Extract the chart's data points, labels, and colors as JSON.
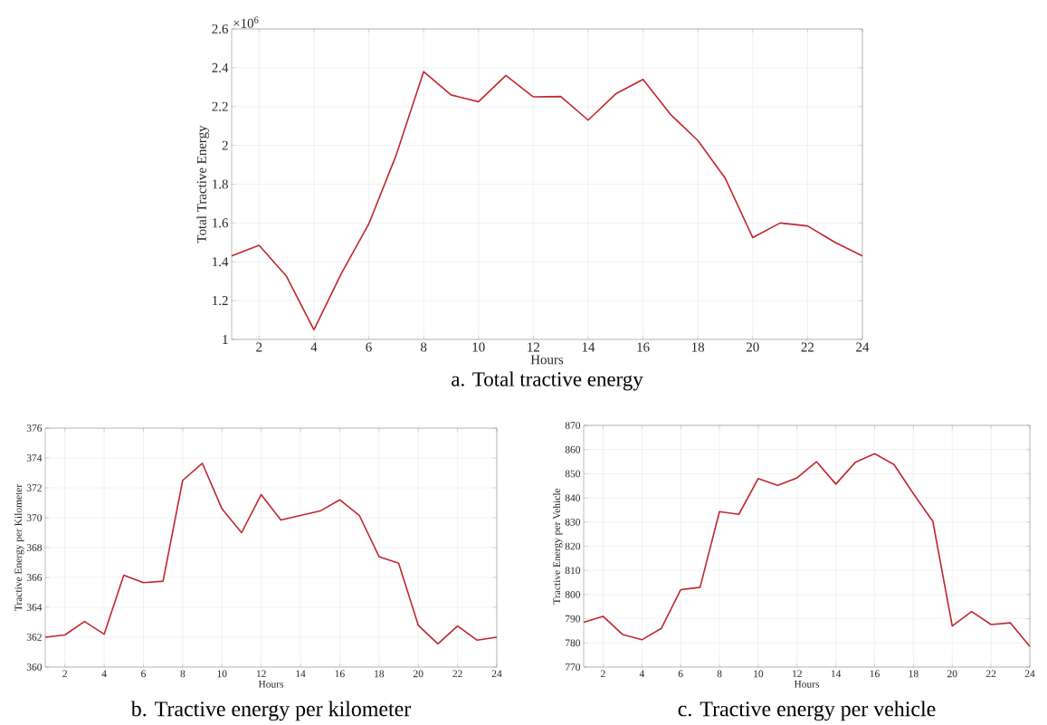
{
  "chart_data": [
    {
      "type": "line",
      "title": "a. Total tractive energy",
      "xlabel": "Hours",
      "ylabel": "Total Tractive Energy",
      "annotations": [
        "×10$^{6}$"
      ],
      "x": [
        1,
        2,
        3,
        4,
        5,
        6,
        7,
        8,
        9,
        10,
        11,
        12,
        13,
        14,
        15,
        16,
        17,
        18,
        19,
        20,
        21,
        22,
        23,
        24
      ],
      "series": [
        {
          "color": "#c0272d",
          "values": [
            1.43,
            1.485,
            1.325,
            1.05,
            1.34,
            1.595,
            1.95,
            2.38,
            2.26,
            2.225,
            2.36,
            2.25,
            2.252,
            2.13,
            2.265,
            2.34,
            2.16,
            2.025,
            1.83,
            1.525,
            1.6,
            1.585,
            1.5,
            1.43
          ]
        }
      ],
      "xlim": [
        1,
        24
      ],
      "xticks": [
        2,
        4,
        6,
        8,
        10,
        12,
        14,
        16,
        18,
        20,
        22,
        24
      ],
      "ylim": [
        1,
        2.6
      ],
      "yticks": [
        1,
        1.2,
        1.4,
        1.6,
        1.8,
        2,
        2.2,
        2.4,
        2.6
      ],
      "grid": true,
      "marker": "none",
      "line_style": "solid"
    },
    {
      "type": "line",
      "title": "b. Tractive energy per kilometer",
      "xlabel": "Hours",
      "ylabel": "Tractive Energy per Kilometer",
      "x": [
        1,
        2,
        3,
        4,
        5,
        6,
        7,
        8,
        9,
        10,
        11,
        12,
        13,
        14,
        15,
        16,
        17,
        18,
        19,
        20,
        21,
        22,
        23,
        24
      ],
      "series": [
        {
          "color": "#c0272d",
          "values": [
            362.0,
            362.15,
            363.05,
            362.2,
            366.15,
            365.65,
            365.75,
            372.5,
            373.65,
            370.6,
            369.0,
            371.55,
            369.85,
            370.15,
            370.45,
            371.2,
            370.15,
            367.4,
            366.95,
            362.8,
            361.55,
            362.75,
            361.8,
            362.0
          ]
        }
      ],
      "xlim": [
        1,
        24
      ],
      "xticks": [
        2,
        4,
        6,
        8,
        10,
        12,
        14,
        16,
        18,
        20,
        22,
        24
      ],
      "ylim": [
        360,
        376
      ],
      "yticks": [
        360,
        362,
        364,
        366,
        368,
        370,
        372,
        374,
        376
      ],
      "grid": true,
      "marker": "none",
      "line_style": "solid"
    },
    {
      "type": "line",
      "title": "c. Tractive energy per vehicle",
      "xlabel": "Hours",
      "ylabel": "Tractive Energy per Vehicle",
      "x": [
        1,
        2,
        3,
        4,
        5,
        6,
        7,
        8,
        9,
        10,
        11,
        12,
        13,
        14,
        15,
        16,
        17,
        18,
        19,
        20,
        21,
        22,
        23,
        24
      ],
      "series": [
        {
          "color": "#c0272d",
          "values": [
            788.5,
            791,
            783.5,
            781.3,
            786,
            802,
            803,
            834.3,
            833.2,
            848,
            845.2,
            848.3,
            855,
            845.7,
            854.7,
            858.3,
            853.8,
            841.7,
            830.3,
            787,
            793,
            787.6,
            788.3,
            778.5
          ]
        }
      ],
      "xlim": [
        1,
        24
      ],
      "xticks": [
        2,
        4,
        6,
        8,
        10,
        12,
        14,
        16,
        18,
        20,
        22,
        24
      ],
      "ylim": [
        770,
        870
      ],
      "yticks": [
        770,
        780,
        790,
        800,
        810,
        820,
        830,
        840,
        850,
        860,
        870
      ],
      "grid": true,
      "marker": "none",
      "line_style": "solid"
    }
  ]
}
